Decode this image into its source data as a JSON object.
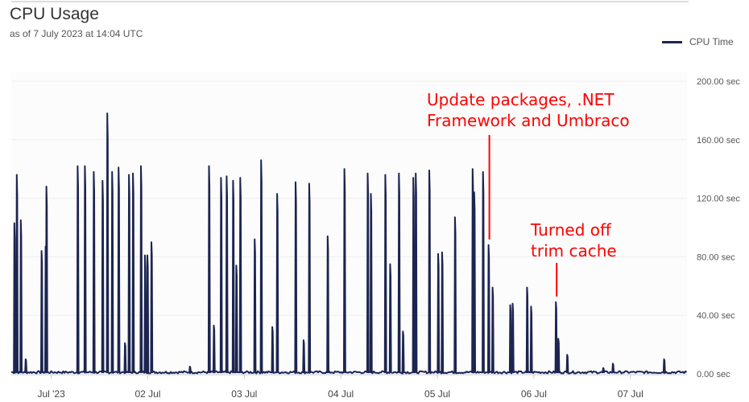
{
  "header": {
    "title": "CPU Usage",
    "subtitle": "as of 7 July 2023 at 14:04 UTC"
  },
  "chart_data": {
    "type": "line",
    "title": "CPU Usage",
    "subtitle": "as of 7 July 2023 at 14:04 UTC",
    "xlabel": "",
    "ylabel": "",
    "xlim": [
      "2023-06-30T14:04",
      "2023-07-07T14:04"
    ],
    "ylim": [
      0,
      200
    ],
    "y_ticks": [
      "0.00 sec",
      "40.00 sec",
      "80.00 sec",
      "120.00 sec",
      "160.00 sec",
      "200.00 sec"
    ],
    "y_tick_values": [
      0,
      40,
      80,
      120,
      160,
      200
    ],
    "x_ticks": [
      "Jul '23",
      "02 Jul",
      "03 Jul",
      "04 Jul",
      "05 Jul",
      "06 Jul",
      "07 Jul"
    ],
    "x_tick_values": [
      "2023-07-01T00:00",
      "2023-07-02T00:00",
      "2023-07-03T00:00",
      "2023-07-04T00:00",
      "2023-07-05T00:00",
      "2023-07-06T00:00",
      "2023-07-07T00:00"
    ],
    "grid": true,
    "legend_position": "top-right",
    "colors": {
      "series": "#1c2550",
      "annotation": "#ff0000",
      "grid": "#eeeeee"
    },
    "series": [
      {
        "name": "CPU Time",
        "baseline": 1,
        "peaks": [
          [
            "2023-06-30T14:50",
            103
          ],
          [
            "2023-06-30T15:26",
            136
          ],
          [
            "2023-06-30T16:26",
            105
          ],
          [
            "2023-06-30T17:38",
            10
          ],
          [
            "2023-06-30T21:36",
            84
          ],
          [
            "2023-06-30T22:36",
            87
          ],
          [
            "2023-06-30T22:48",
            128
          ],
          [
            "2023-07-01T06:34",
            142
          ],
          [
            "2023-07-01T08:22",
            142
          ],
          [
            "2023-07-01T10:34",
            138
          ],
          [
            "2023-07-01T12:45",
            132
          ],
          [
            "2023-07-01T13:56",
            178
          ],
          [
            "2023-07-01T15:08",
            138
          ],
          [
            "2023-07-01T16:44",
            141
          ],
          [
            "2023-07-01T18:19",
            21
          ],
          [
            "2023-07-01T19:19",
            136
          ],
          [
            "2023-07-01T20:19",
            137
          ],
          [
            "2023-07-01T22:18",
            142
          ],
          [
            "2023-07-01T23:18",
            81
          ],
          [
            "2023-07-01T23:54",
            81
          ],
          [
            "2023-07-02T00:54",
            90
          ],
          [
            "2023-07-02T10:28",
            5
          ],
          [
            "2023-07-02T15:14",
            142
          ],
          [
            "2023-07-02T16:26",
            33
          ],
          [
            "2023-07-02T18:13",
            134
          ],
          [
            "2023-07-02T19:37",
            135
          ],
          [
            "2023-07-02T21:13",
            132
          ],
          [
            "2023-07-02T22:01",
            74
          ],
          [
            "2023-07-02T23:00",
            134
          ],
          [
            "2023-07-03T02:35",
            92
          ],
          [
            "2023-07-03T04:11",
            146
          ],
          [
            "2023-07-03T06:58",
            32
          ],
          [
            "2023-07-03T08:10",
            123
          ],
          [
            "2023-07-03T12:45",
            131
          ],
          [
            "2023-07-03T14:44",
            23
          ],
          [
            "2023-07-03T16:08",
            130
          ],
          [
            "2023-07-03T20:43",
            94
          ],
          [
            "2023-07-04T00:53",
            140
          ],
          [
            "2023-07-04T06:40",
            137
          ],
          [
            "2023-07-04T07:28",
            123
          ],
          [
            "2023-07-04T11:03",
            136
          ],
          [
            "2023-07-04T12:15",
            75
          ],
          [
            "2023-07-04T14:26",
            137
          ],
          [
            "2023-07-04T15:26",
            29
          ],
          [
            "2023-07-04T18:01",
            134
          ],
          [
            "2023-07-04T18:37",
            137
          ],
          [
            "2023-07-04T22:00",
            139
          ],
          [
            "2023-07-05T00:12",
            82
          ],
          [
            "2023-07-05T01:11",
            83
          ],
          [
            "2023-07-05T04:23",
            107
          ],
          [
            "2023-07-05T08:46",
            140
          ],
          [
            "2023-07-05T09:10",
            124
          ],
          [
            "2023-07-05T11:21",
            138
          ],
          [
            "2023-07-05T12:44",
            88
          ],
          [
            "2023-07-05T13:44",
            59
          ],
          [
            "2023-07-05T18:07",
            47
          ],
          [
            "2023-07-05T18:43",
            48
          ],
          [
            "2023-07-05T22:18",
            59
          ],
          [
            "2023-07-05T23:18",
            46
          ],
          [
            "2023-07-06T05:28",
            49
          ],
          [
            "2023-07-06T06:04",
            24
          ],
          [
            "2023-07-06T08:16",
            13
          ],
          [
            "2023-07-06T17:13",
            4
          ],
          [
            "2023-07-06T19:37",
            7
          ],
          [
            "2023-07-07T08:22",
            10
          ]
        ]
      }
    ],
    "annotations": [
      {
        "lines": [
          "Update packages, .NET",
          "Framework and Umbraco"
        ],
        "x": "2023-07-05T12:44",
        "y": 88
      },
      {
        "lines": [
          "Turned off",
          "trim cache"
        ],
        "x": "2023-07-06T05:28",
        "y": 49
      }
    ]
  }
}
